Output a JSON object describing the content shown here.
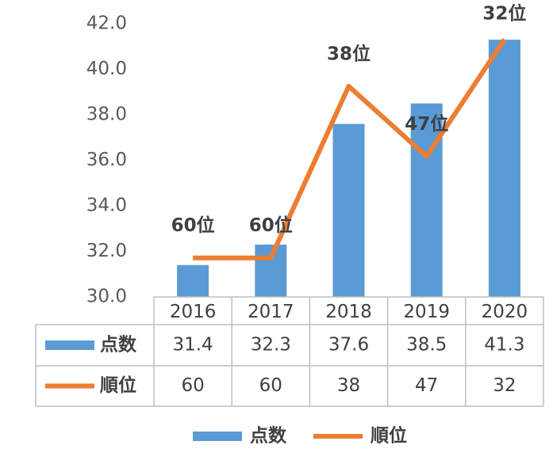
{
  "chart_data": {
    "type": "bar",
    "categories": [
      "2016",
      "2017",
      "2018",
      "2019",
      "2020"
    ],
    "series": [
      {
        "name": "点数",
        "type": "bar",
        "color": "#5b9bd5",
        "values": [
          31.4,
          32.3,
          37.6,
          38.5,
          41.3
        ]
      },
      {
        "name": "順位",
        "type": "line",
        "axis": "y2",
        "color": "#ed7d31",
        "values": [
          60,
          60,
          38,
          47,
          32
        ],
        "value_labels": [
          "60位",
          "60位",
          "38位",
          "47位",
          "32位"
        ]
      }
    ],
    "ylim": [
      30,
      42
    ],
    "yticks": [
      {
        "value": 30,
        "label": "30.0"
      },
      {
        "value": 32,
        "label": "32.0"
      },
      {
        "value": 34,
        "label": "34.0"
      },
      {
        "value": 36,
        "label": "36.0"
      },
      {
        "value": 38,
        "label": "38.0"
      },
      {
        "value": 40,
        "label": "40.0"
      },
      {
        "value": 42,
        "label": "42.0"
      }
    ],
    "y2lim": [
      65,
      30
    ],
    "data_table": true,
    "legend": "bottom"
  }
}
